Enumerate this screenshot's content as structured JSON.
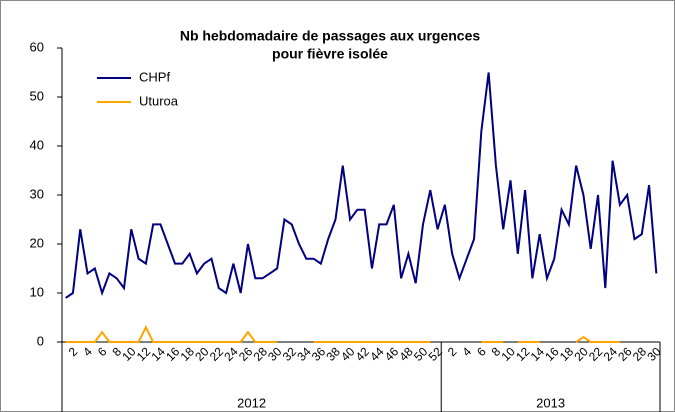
{
  "chart_data": {
    "type": "line",
    "title": [
      "Nb hebdomadaire de passages aux urgences",
      "pour fièvre isolée"
    ],
    "categories": [
      null,
      "2",
      null,
      "4",
      null,
      "6",
      null,
      "8",
      null,
      "10",
      null,
      "12",
      null,
      "14",
      null,
      "16",
      null,
      "18",
      null,
      "20",
      null,
      "22",
      null,
      "24",
      null,
      "26",
      null,
      "28",
      null,
      "30",
      null,
      "32",
      null,
      "34",
      null,
      "36",
      null,
      "38",
      null,
      "40",
      null,
      "42",
      null,
      "44",
      null,
      "46",
      null,
      "48",
      null,
      "50",
      null,
      "52",
      null,
      "2",
      null,
      "4",
      null,
      "6",
      null,
      "8",
      null,
      "10",
      null,
      "12",
      null,
      "14",
      null,
      "16",
      null,
      "18",
      null,
      "20",
      null,
      "22",
      null,
      "24",
      null,
      "26",
      null,
      "28",
      null,
      "30"
    ],
    "groups": [
      {
        "label": "2012",
        "count": 52
      },
      {
        "label": "2013",
        "count": 30
      }
    ],
    "series": [
      {
        "name": "CHPf",
        "color": "#000080",
        "values": [
          9,
          10,
          23,
          14,
          15,
          10,
          14,
          13,
          11,
          23,
          17,
          16,
          24,
          24,
          20,
          16,
          16,
          18,
          14,
          16,
          17,
          11,
          10,
          16,
          10,
          20,
          13,
          13,
          14,
          15,
          25,
          24,
          20,
          17,
          17,
          16,
          21,
          25,
          36,
          25,
          27,
          27,
          15,
          24,
          24,
          28,
          13,
          18,
          12,
          24,
          31,
          23,
          28,
          18,
          13,
          17,
          21,
          43,
          55,
          36,
          23,
          33,
          18,
          31,
          13,
          22,
          13,
          17,
          27,
          24,
          36,
          30,
          19,
          30,
          11,
          37,
          28,
          30,
          21,
          22,
          32,
          14
        ]
      },
      {
        "name": "Uturoa",
        "color": "#FFA500",
        "values": [
          0,
          0,
          0,
          0,
          0,
          2,
          0,
          0,
          0,
          0,
          0,
          3,
          0,
          0,
          0,
          0,
          0,
          0,
          0,
          0,
          0,
          0,
          0,
          0,
          0,
          2,
          0,
          0,
          0,
          0,
          null,
          null,
          null,
          null,
          0,
          0,
          0,
          0,
          0,
          0,
          0,
          0,
          0,
          0,
          0,
          0,
          0,
          0,
          0,
          0,
          0,
          null,
          null,
          null,
          null,
          null,
          null,
          0,
          0,
          0,
          0,
          null,
          0,
          0,
          0,
          0,
          null,
          null,
          null,
          null,
          0,
          1,
          0,
          0,
          0,
          0,
          0,
          null,
          null,
          null,
          null,
          null
        ]
      }
    ],
    "ylim": [
      0,
      60
    ],
    "yticks": [
      0,
      10,
      20,
      30,
      40,
      50,
      60
    ],
    "grid": false,
    "legend": "top-left"
  }
}
